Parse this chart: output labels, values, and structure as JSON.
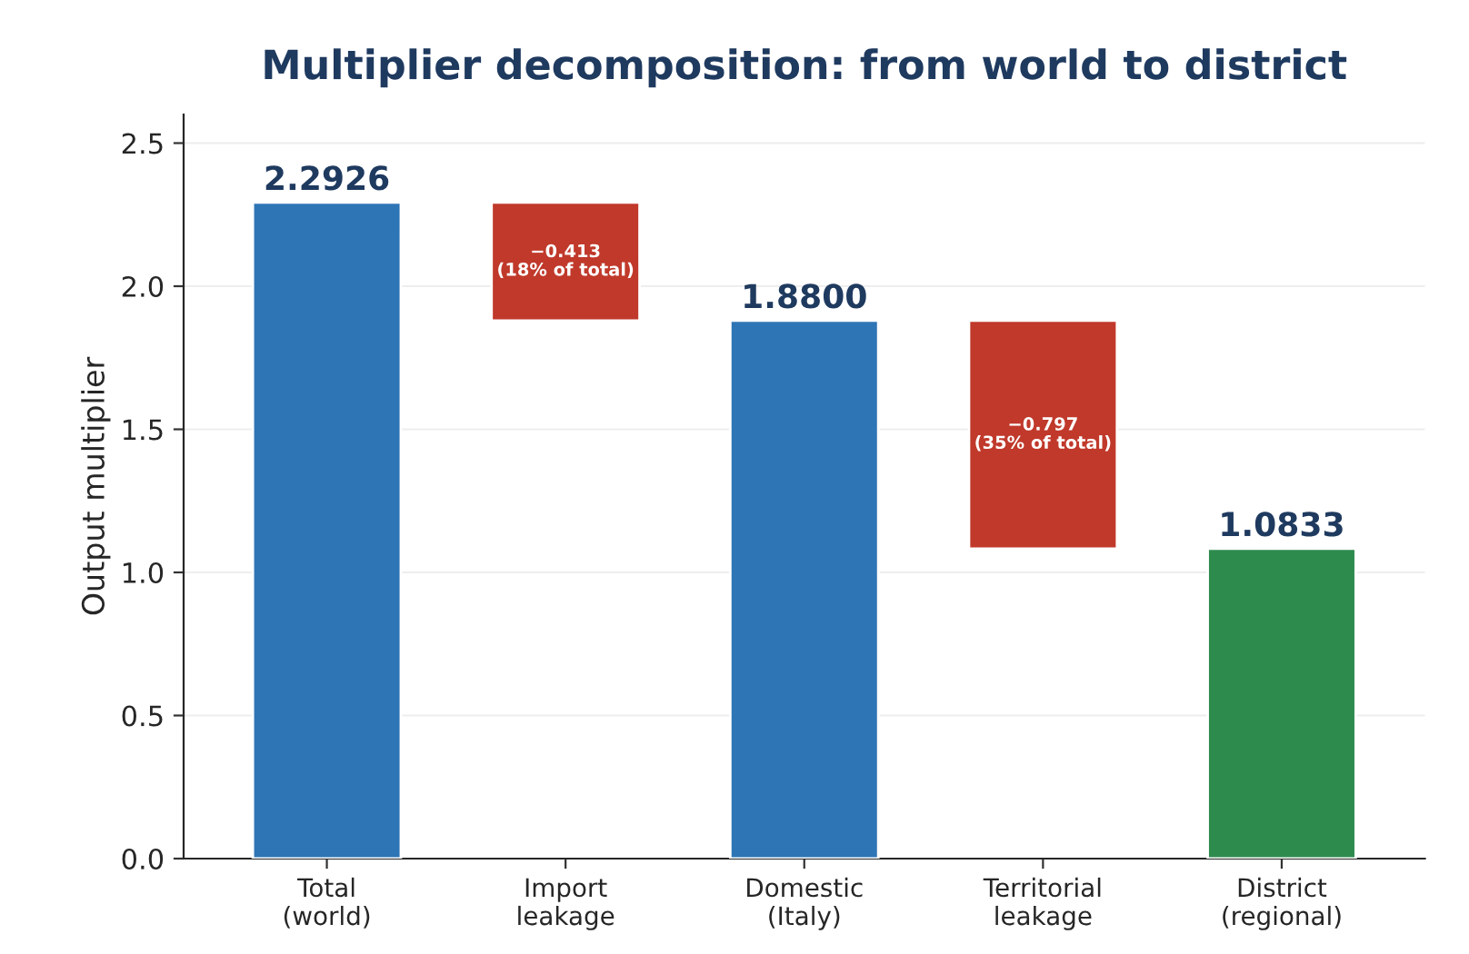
{
  "chart_data": {
    "type": "bar",
    "title": "Multiplier decomposition: from world to district",
    "ylabel": "Output multiplier",
    "categories": [
      "Total\n(world)",
      "Import\nleakage",
      "Domestic\n(Italy)",
      "Territorial\nleakage",
      "District\n(regional)"
    ],
    "values": [
      2.2926,
      -0.413,
      1.88,
      -0.797,
      1.0833
    ],
    "base": [
      0,
      2.2926,
      0,
      1.88,
      0
    ],
    "colors": [
      "#2e75b6",
      "#c0392b",
      "#2e75b6",
      "#c0392b",
      "#2e8b4e"
    ],
    "value_labels": [
      "2.2926",
      "−0.413\n(18% of total)",
      "1.8800",
      "−0.797\n(35% of total)",
      "1.0833"
    ],
    "ylim": [
      0,
      2.6
    ],
    "yticks": [
      {
        "value": 0,
        "label": "0.0"
      },
      0.5,
      {
        "value": 1,
        "label": "1.0"
      },
      1.5,
      {
        "value": 2,
        "label": "2.0"
      },
      2.5
    ],
    "grid": "y"
  }
}
